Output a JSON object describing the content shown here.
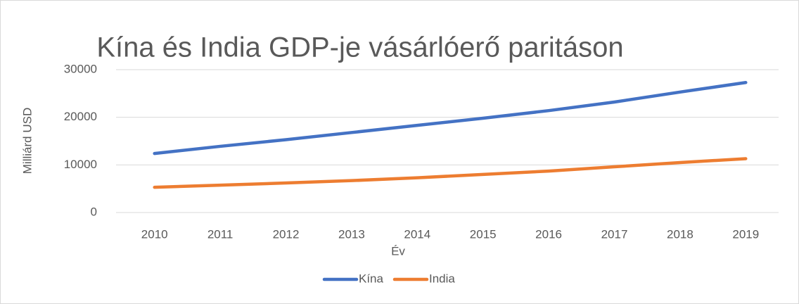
{
  "chart_data": {
    "type": "line",
    "title": "Kína és India GDP-je vásárlóerő paritáson",
    "x_label": "Év",
    "y_label": "Milliárd USD",
    "categories": [
      "2010",
      "2011",
      "2012",
      "2013",
      "2014",
      "2015",
      "2016",
      "2017",
      "2018",
      "2019"
    ],
    "series": [
      {
        "name": "Kína",
        "color": "#4472c4",
        "values": [
          12400,
          13900,
          15300,
          16800,
          18300,
          19800,
          21400,
          23200,
          25300,
          27300
        ]
      },
      {
        "name": "India",
        "color": "#ed7d31",
        "values": [
          5300,
          5750,
          6200,
          6700,
          7300,
          8000,
          8700,
          9600,
          10500,
          11300
        ]
      }
    ],
    "ylim": [
      0,
      30000
    ],
    "yticks": [
      0,
      10000,
      20000,
      30000
    ],
    "grid": true,
    "legend": "bottom"
  }
}
